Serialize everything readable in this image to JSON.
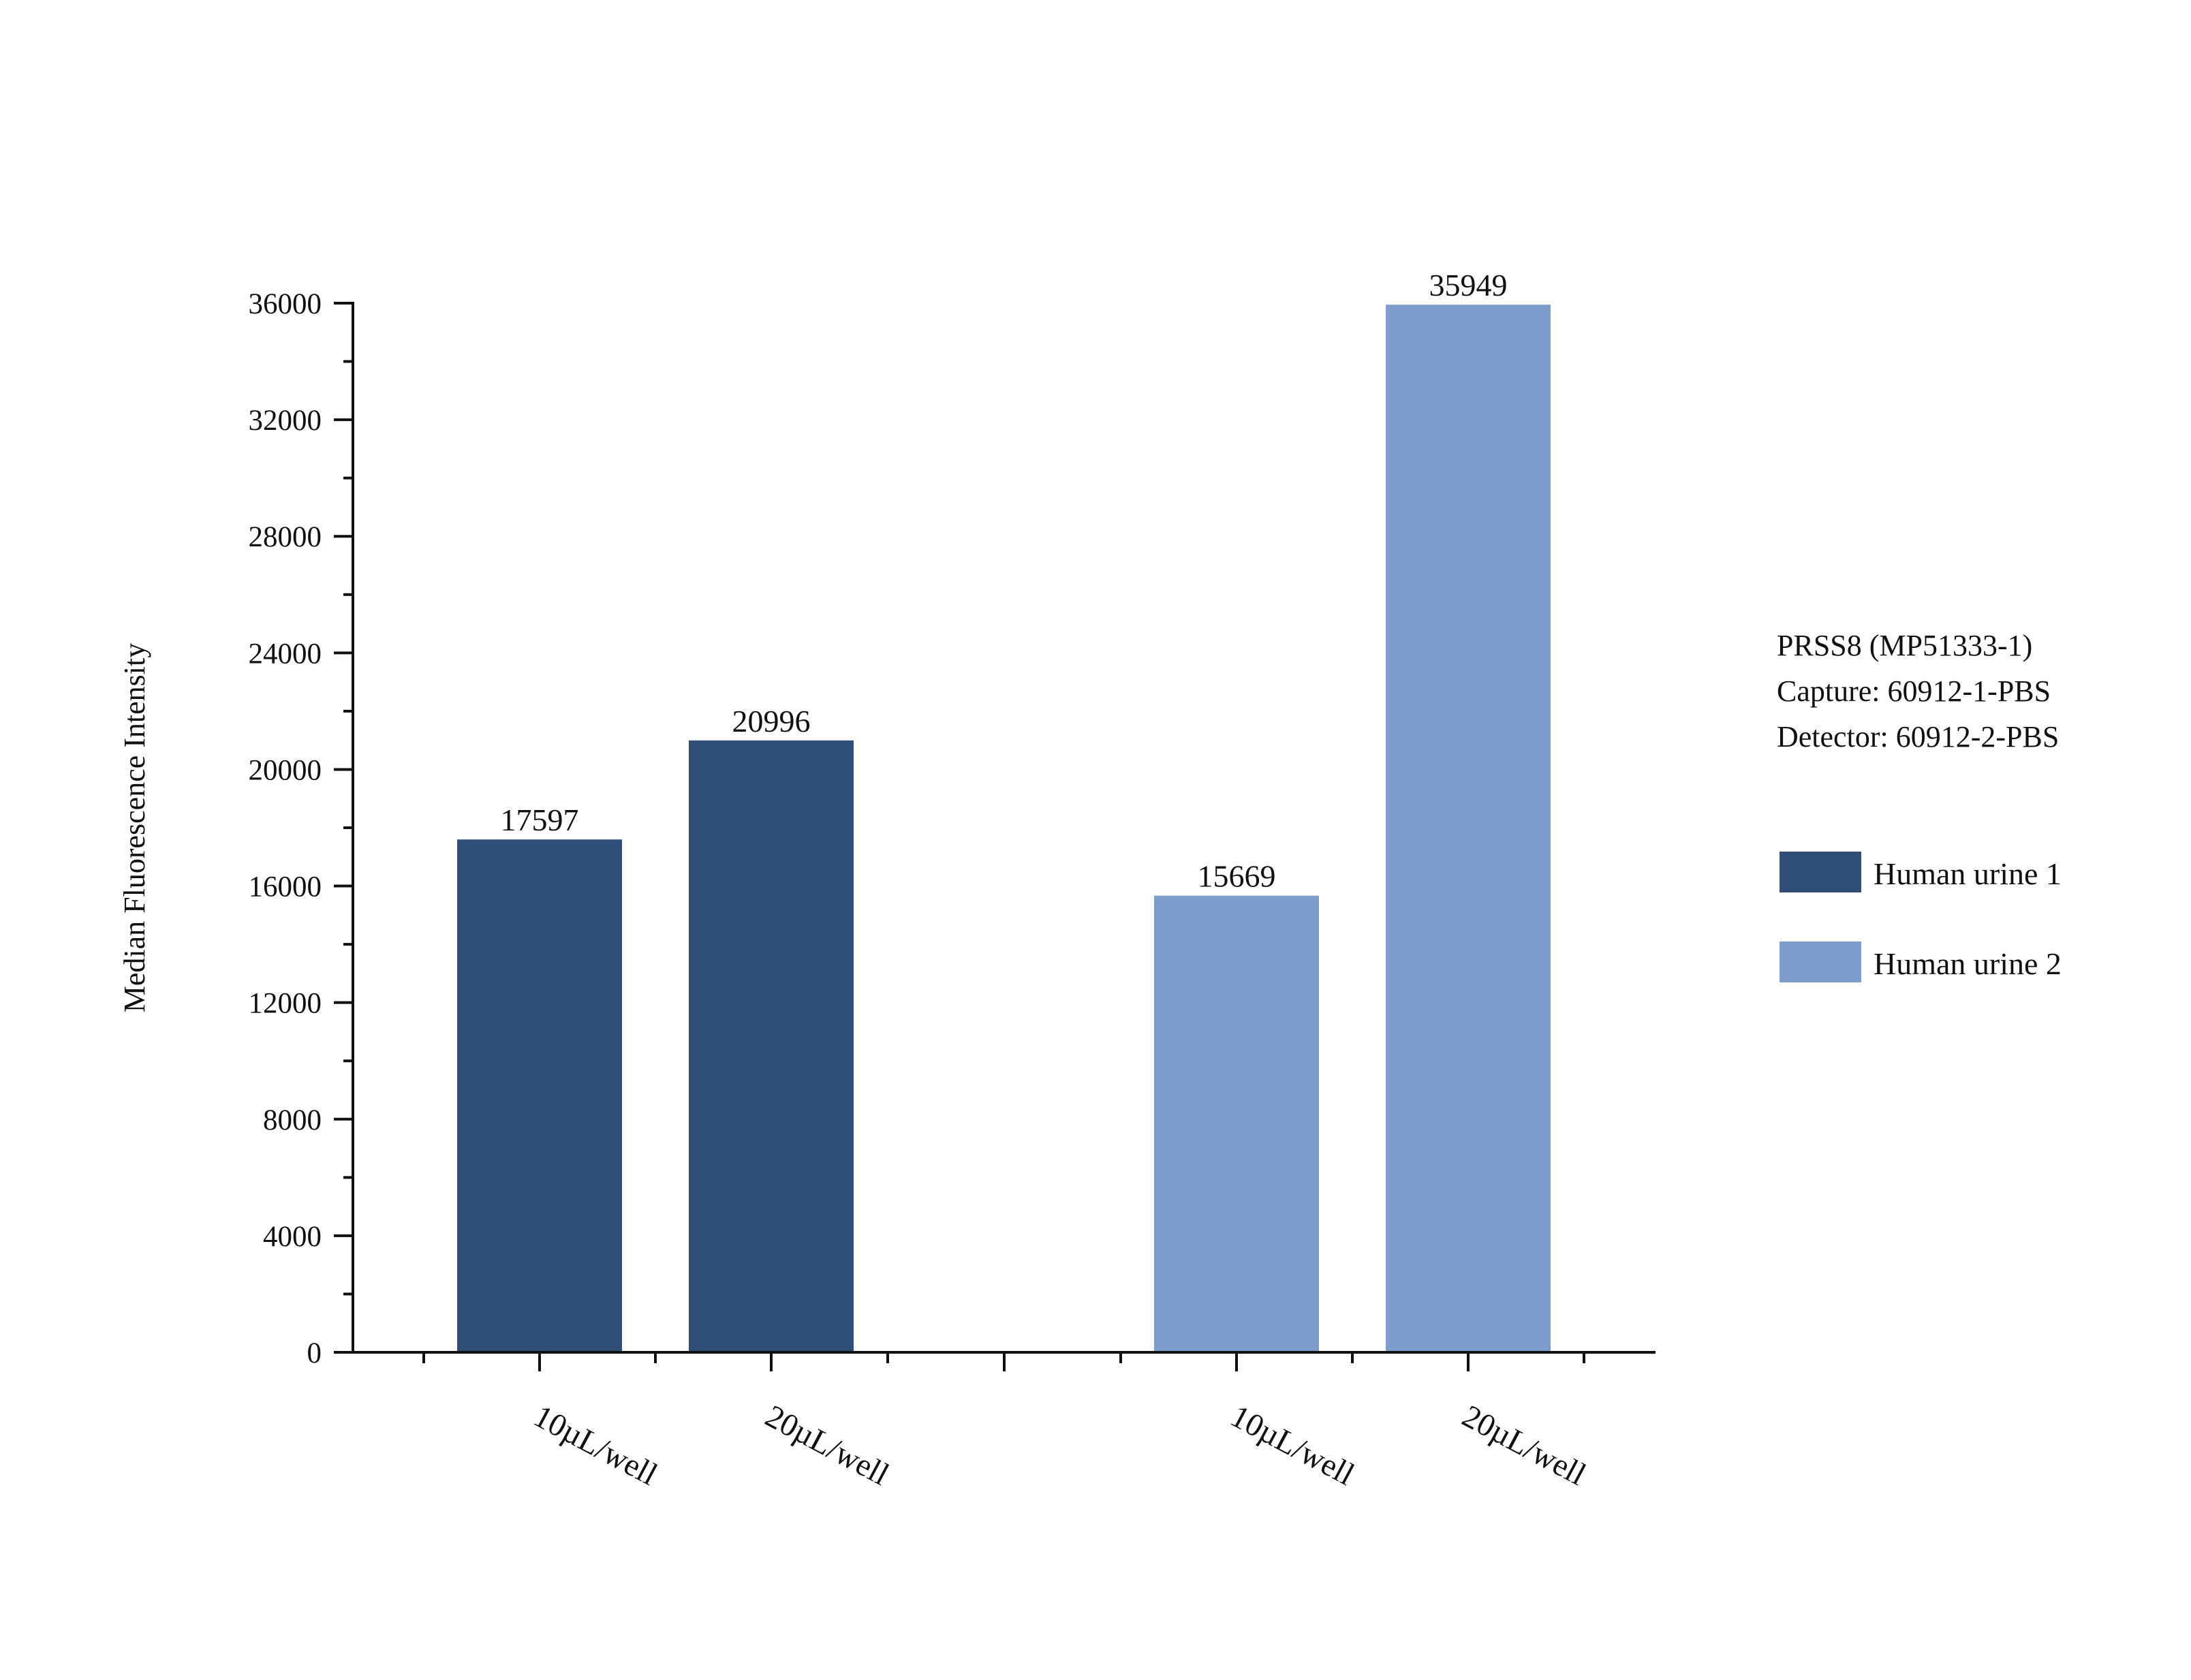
{
  "chart_data": {
    "type": "bar",
    "groups": [
      {
        "series": "Human urine 1",
        "categories": [
          "10µL/well",
          "20µL/well"
        ],
        "values": [
          17597,
          20996
        ]
      },
      {
        "series": "Human urine 2",
        "categories": [
          "10µL/well",
          "20µL/well"
        ],
        "values": [
          15669,
          35949
        ]
      }
    ],
    "series": [
      {
        "name": "Human urine 1",
        "color": "#2f4f78"
      },
      {
        "name": "Human urine 2",
        "color": "#7d9ecc"
      }
    ],
    "data_labels": [
      "17597",
      "20996",
      "15669",
      "35949"
    ],
    "ylabel": "Median Fluorescence Intensity",
    "xlabel": "",
    "ylim": [
      0,
      36000
    ],
    "yticks": [
      0,
      4000,
      8000,
      12000,
      16000,
      20000,
      24000,
      28000,
      32000,
      36000
    ],
    "ytick_labels": [
      "0",
      "4000",
      "8000",
      "12000",
      "16000",
      "20000",
      "24000",
      "28000",
      "32000",
      "36000"
    ],
    "grid": false,
    "legend_position": "right"
  },
  "info_lines": [
    "PRSS8 (MP51333-1)",
    "Capture: 60912-1-PBS",
    "Detector: 60912-2-PBS"
  ],
  "legend": [
    {
      "label": "Human urine 1",
      "color": "#2f4f78"
    },
    {
      "label": "Human urine 2",
      "color": "#7d9ecc"
    }
  ],
  "colors": {
    "axis": "#111111",
    "text": "#111111"
  }
}
